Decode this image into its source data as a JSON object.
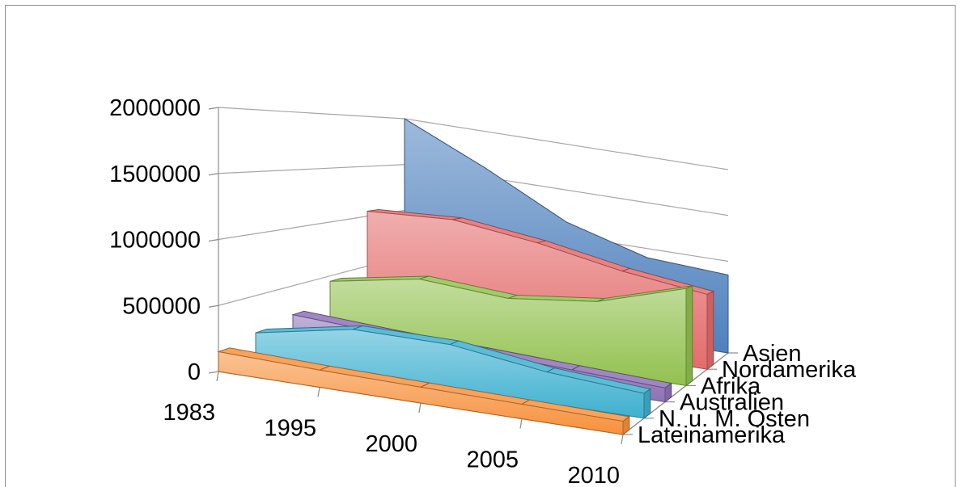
{
  "chart_data": {
    "type": "area",
    "subtype": "3d-area",
    "title": "",
    "categories": [
      "1983",
      "1995",
      "2000",
      "2005",
      "2010"
    ],
    "y_ticks": [
      "0",
      "500000",
      "1000000",
      "1500000",
      "2000000"
    ],
    "ylim": [
      0,
      2000000
    ],
    "grid": true,
    "series": [
      {
        "name": "Asien",
        "values": [
          2000000,
          1600000,
          1150000,
          900000,
          850000
        ],
        "color": "#4f81bd"
      },
      {
        "name": "Nordamerika",
        "values": [
          1050000,
          1100000,
          1000000,
          850000,
          750000
        ],
        "color": "#e46c6c"
      },
      {
        "name": "Afrika",
        "values": [
          450000,
          600000,
          550000,
          650000,
          900000
        ],
        "color": "#92c14f"
      },
      {
        "name": "Australien",
        "values": [
          250000,
          210000,
          180000,
          150000,
          120000
        ],
        "color": "#8e72b6"
      },
      {
        "name": "N. u. M. Osten",
        "values": [
          200000,
          350000,
          350000,
          250000,
          200000
        ],
        "color": "#3fb0cf"
      },
      {
        "name": "Lateinamerika",
        "values": [
          150000,
          130000,
          120000,
          110000,
          100000
        ],
        "color": "#f7913d"
      }
    ]
  }
}
